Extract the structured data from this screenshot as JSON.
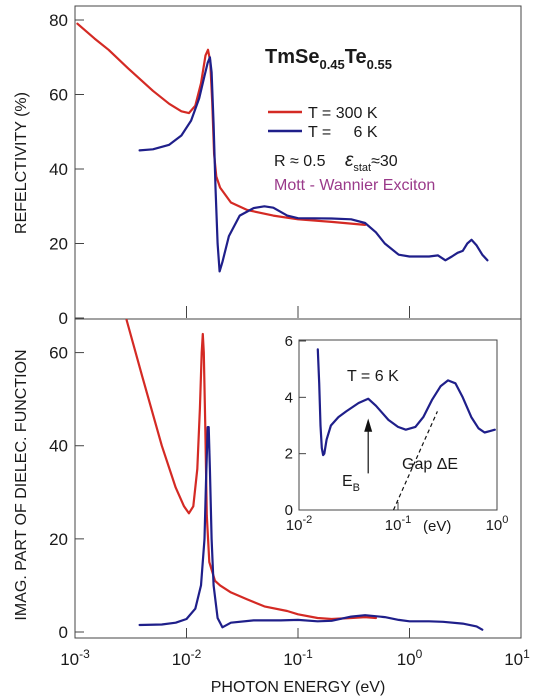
{
  "colors": {
    "series_300K": "#d42a24",
    "series_6K": "#1f1f8a",
    "axes": "#444444",
    "mott_text": "#9a3a8a"
  },
  "chart_data": [
    {
      "panel": "top",
      "type": "line",
      "x_scale": "log",
      "xlim": [
        0.001,
        10
      ],
      "ylim": [
        0,
        80
      ],
      "ylabel": "REFELCTIVITY  (%)",
      "yticks": [
        0,
        20,
        40,
        60,
        80
      ],
      "title": {
        "base1": "TmSe",
        "sub1": "0.45",
        "base2": "Te",
        "sub2": "0.55"
      },
      "annotations": {
        "r_text": "R ≈ 0.5",
        "eps_symbol": "ε",
        "eps_sub": "stat",
        "eps_val": "≈30",
        "mott_text": "Mott - Wannier Exciton"
      },
      "series": [
        {
          "name": "T = 300 K",
          "color_key": "series_300K",
          "points": [
            [
              0.00105,
              79
            ],
            [
              0.0015,
              75
            ],
            [
              0.002,
              72
            ],
            [
              0.003,
              67
            ],
            [
              0.005,
              61
            ],
            [
              0.007,
              57.5
            ],
            [
              0.009,
              55.5
            ],
            [
              0.0105,
              55
            ],
            [
              0.012,
              57
            ],
            [
              0.0135,
              63
            ],
            [
              0.0148,
              70.5
            ],
            [
              0.0156,
              72
            ],
            [
              0.0163,
              69
            ],
            [
              0.017,
              58
            ],
            [
              0.0177,
              44
            ],
            [
              0.0185,
              38
            ],
            [
              0.02,
              35
            ],
            [
              0.025,
              31
            ],
            [
              0.035,
              29
            ],
            [
              0.06,
              27.5
            ],
            [
              0.1,
              26.5
            ],
            [
              0.2,
              25.8
            ],
            [
              0.4,
              25
            ]
          ]
        },
        {
          "name": "T =     6 K",
          "color_key": "series_6K",
          "points": [
            [
              0.0038,
              45
            ],
            [
              0.005,
              45.3
            ],
            [
              0.007,
              46.5
            ],
            [
              0.009,
              49
            ],
            [
              0.011,
              53
            ],
            [
              0.013,
              59
            ],
            [
              0.0145,
              65
            ],
            [
              0.0155,
              68.5
            ],
            [
              0.0162,
              70
            ],
            [
              0.0168,
              66
            ],
            [
              0.0175,
              52
            ],
            [
              0.0182,
              35
            ],
            [
              0.019,
              20
            ],
            [
              0.0198,
              12.5
            ],
            [
              0.021,
              15
            ],
            [
              0.024,
              22
            ],
            [
              0.03,
              27.5
            ],
            [
              0.04,
              29.5
            ],
            [
              0.05,
              30
            ],
            [
              0.06,
              29.6
            ],
            [
              0.08,
              27.5
            ],
            [
              0.1,
              26.8
            ],
            [
              0.2,
              26.7
            ],
            [
              0.3,
              26.5
            ],
            [
              0.4,
              25.5
            ],
            [
              0.5,
              23
            ],
            [
              0.6,
              20
            ],
            [
              0.8,
              17
            ],
            [
              1,
              16.5
            ],
            [
              1.5,
              16.5
            ],
            [
              1.8,
              16.8
            ],
            [
              2.1,
              15.5
            ],
            [
              2.4,
              16.5
            ],
            [
              2.7,
              17.5
            ],
            [
              3,
              18
            ],
            [
              3.3,
              20
            ],
            [
              3.6,
              21
            ],
            [
              4,
              19.5
            ],
            [
              4.5,
              17
            ],
            [
              5,
              15.5
            ]
          ]
        }
      ]
    },
    {
      "panel": "bottom",
      "type": "line",
      "x_scale": "log",
      "xlim": [
        0.001,
        10
      ],
      "ylim": [
        0,
        67
      ],
      "xlabel": "PHOTON ENERGY  (eV)",
      "ylabel": "IMAG. PART OF DIELEC. FUNCTION",
      "yticks": [
        0,
        20,
        40,
        60
      ],
      "xticks": [
        {
          "base": "10",
          "exp": "-3"
        },
        {
          "base": "10",
          "exp": "-2"
        },
        {
          "base": "10",
          "exp": "-1"
        },
        {
          "base": "10",
          "exp": "0"
        },
        {
          "base": "10",
          "exp": "1"
        }
      ],
      "series": [
        {
          "name": "T = 300 K",
          "color_key": "series_300K",
          "points": [
            [
              0.0029,
              67
            ],
            [
              0.004,
              55
            ],
            [
              0.006,
              40
            ],
            [
              0.008,
              31
            ],
            [
              0.0095,
              27
            ],
            [
              0.0105,
              25.5
            ],
            [
              0.0115,
              27
            ],
            [
              0.0125,
              35
            ],
            [
              0.0132,
              48
            ],
            [
              0.0137,
              60
            ],
            [
              0.014,
              64
            ],
            [
              0.0143,
              60
            ],
            [
              0.0147,
              45
            ],
            [
              0.0152,
              25
            ],
            [
              0.016,
              15
            ],
            [
              0.018,
              11
            ],
            [
              0.02,
              10
            ],
            [
              0.025,
              8.5
            ],
            [
              0.035,
              7
            ],
            [
              0.05,
              5.5
            ],
            [
              0.08,
              4.5
            ],
            [
              0.1,
              3.8
            ],
            [
              0.15,
              3
            ],
            [
              0.2,
              2.8
            ],
            [
              0.3,
              3
            ],
            [
              0.4,
              3.2
            ],
            [
              0.5,
              3
            ]
          ]
        },
        {
          "name": "T =     6 K",
          "color_key": "series_6K",
          "points": [
            [
              0.0038,
              1.5
            ],
            [
              0.006,
              1.6
            ],
            [
              0.008,
              2
            ],
            [
              0.01,
              2.8
            ],
            [
              0.012,
              5
            ],
            [
              0.0135,
              10
            ],
            [
              0.0145,
              20
            ],
            [
              0.015,
              33
            ],
            [
              0.0155,
              44
            ],
            [
              0.0158,
              44
            ],
            [
              0.0162,
              35
            ],
            [
              0.0168,
              20
            ],
            [
              0.0175,
              10
            ],
            [
              0.019,
              3
            ],
            [
              0.021,
              1
            ],
            [
              0.025,
              2
            ],
            [
              0.04,
              2.5
            ],
            [
              0.07,
              2.5
            ],
            [
              0.1,
              2.6
            ],
            [
              0.15,
              2.3
            ],
            [
              0.2,
              2.4
            ],
            [
              0.3,
              3.3
            ],
            [
              0.4,
              3.6
            ],
            [
              0.6,
              3.2
            ],
            [
              0.8,
              2.6
            ],
            [
              1,
              2.3
            ],
            [
              1.5,
              2.3
            ],
            [
              2,
              2.2
            ],
            [
              3,
              1.8
            ],
            [
              4,
              1.2
            ],
            [
              4.5,
              0.5
            ]
          ]
        }
      ]
    },
    {
      "panel": "inset",
      "type": "line",
      "x_scale": "log",
      "xlim": [
        0.01,
        1
      ],
      "ylim": [
        0,
        6
      ],
      "yticks": [
        0,
        2,
        4,
        6
      ],
      "xticks": [
        {
          "base": "10",
          "exp": "-2"
        },
        {
          "base": "10",
          "exp": "-1"
        },
        {
          "base": "10",
          "exp": "0"
        }
      ],
      "xunit": "(eV)",
      "annotations": {
        "temp_label": "T = 6 K",
        "eb_base": "E",
        "eb_sub": "B",
        "gap_label": "Gap  ΔE",
        "eb_x": 0.05,
        "gap_line": [
          [
            0.09,
            0
          ],
          [
            0.25,
            3.5
          ]
        ]
      },
      "series": [
        {
          "name": "T = 6 K",
          "color_key": "series_6K",
          "points": [
            [
              0.0155,
              5.7
            ],
            [
              0.016,
              4.5
            ],
            [
              0.0165,
              3
            ],
            [
              0.017,
              2.2
            ],
            [
              0.0175,
              1.95
            ],
            [
              0.018,
              2
            ],
            [
              0.019,
              2.5
            ],
            [
              0.021,
              3
            ],
            [
              0.025,
              3.3
            ],
            [
              0.03,
              3.5
            ],
            [
              0.04,
              3.8
            ],
            [
              0.05,
              3.95
            ],
            [
              0.06,
              3.7
            ],
            [
              0.08,
              3.2
            ],
            [
              0.1,
              2.95
            ],
            [
              0.12,
              2.85
            ],
            [
              0.15,
              2.95
            ],
            [
              0.18,
              3.3
            ],
            [
              0.22,
              3.9
            ],
            [
              0.27,
              4.4
            ],
            [
              0.32,
              4.6
            ],
            [
              0.38,
              4.5
            ],
            [
              0.45,
              4
            ],
            [
              0.55,
              3.3
            ],
            [
              0.65,
              2.9
            ],
            [
              0.75,
              2.75
            ],
            [
              0.85,
              2.8
            ],
            [
              0.95,
              2.85
            ]
          ]
        }
      ]
    }
  ]
}
